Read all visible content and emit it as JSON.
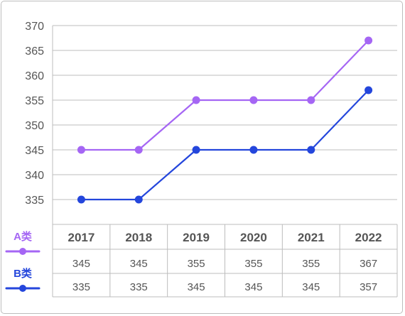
{
  "colors": {
    "series_a": "#a566f4",
    "series_b": "#2446dc",
    "grid": "#bcbcbc",
    "text": "#555555"
  },
  "chart_data": {
    "type": "line",
    "title": "",
    "xlabel": "",
    "ylabel": "",
    "categories": [
      "2017",
      "2018",
      "2019",
      "2020",
      "2021",
      "2022"
    ],
    "ylim": [
      335,
      370
    ],
    "yticks": [
      335,
      340,
      345,
      350,
      355,
      360,
      365,
      370
    ],
    "grid": true,
    "legend": "left of table",
    "series": [
      {
        "name": "A类",
        "color": "#a566f4",
        "values": [
          345,
          345,
          355,
          355,
          355,
          367
        ],
        "labels": [
          "345",
          "345",
          "355",
          "355",
          "355",
          "367"
        ]
      },
      {
        "name": "B类",
        "color": "#2446dc",
        "values": [
          335,
          335,
          345,
          345,
          345,
          357
        ],
        "labels": [
          "335",
          "335",
          "345",
          "345",
          "345",
          "357"
        ]
      }
    ]
  }
}
